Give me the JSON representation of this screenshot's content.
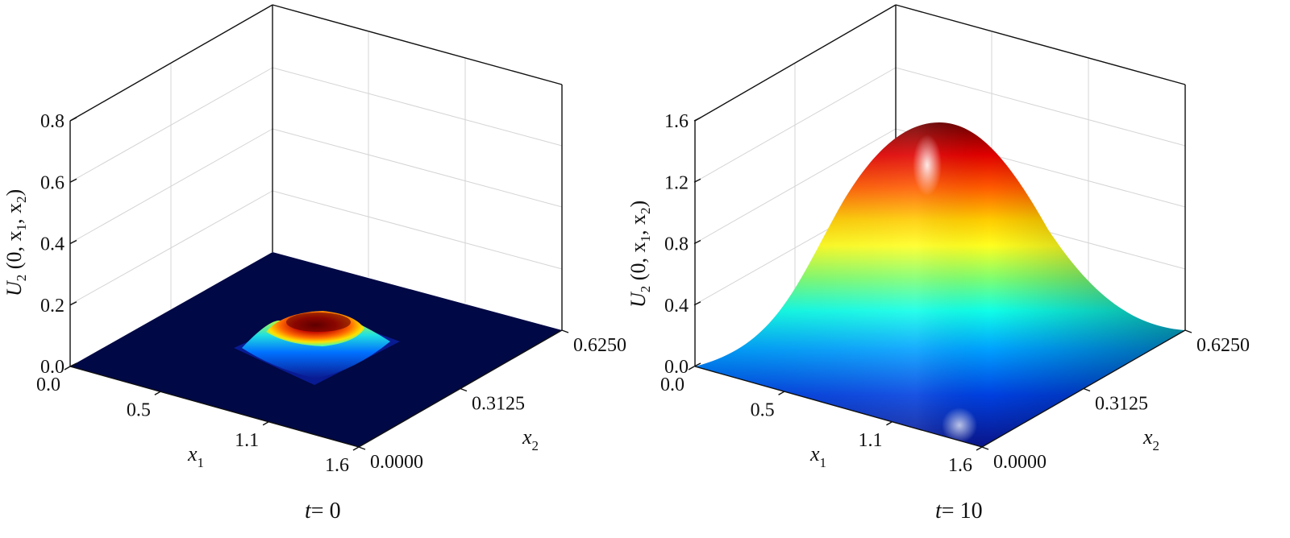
{
  "chart_data": [
    {
      "type": "surface",
      "title_var": "t",
      "title_value": "= 0",
      "zlabel": {
        "main": "U",
        "sub": "2",
        "rest": " (0, x",
        "sub1": "1",
        "mid": ", x",
        "sub2": "2",
        "end": ")"
      },
      "xlabel": {
        "main": "x",
        "sub": "1"
      },
      "ylabel": {
        "main": "x",
        "sub": "2"
      },
      "x_ticks": [
        "0.0",
        "0.5",
        "1.1",
        "1.6"
      ],
      "y_ticks": [
        "0.0000",
        "0.3125",
        "0.6250"
      ],
      "z_ticks": [
        "0.0",
        "0.2",
        "0.4",
        "0.6",
        "0.8"
      ],
      "xlim": [
        0,
        1.6
      ],
      "ylim": [
        0,
        0.625
      ],
      "zlim": [
        0,
        0.8
      ],
      "surface": {
        "shape": "localized-bump",
        "center_x": 0.8,
        "center_y": 0.3125,
        "width_x": 0.3,
        "width_y": 0.12,
        "peak": 0.2
      },
      "colormap": "jet",
      "grid": true
    },
    {
      "type": "surface",
      "title_var": "t",
      "title_value": "= 10",
      "zlabel": {
        "main": "U",
        "sub": "2",
        "rest": " (0, x",
        "sub1": "1",
        "mid": ", x",
        "sub2": "2",
        "end": ")"
      },
      "xlabel": {
        "main": "x",
        "sub": "1"
      },
      "ylabel": {
        "main": "x",
        "sub": "2"
      },
      "x_ticks": [
        "0.0",
        "0.5",
        "1.1",
        "1.6"
      ],
      "y_ticks": [
        "0.0000",
        "0.3125",
        "0.6250"
      ],
      "z_ticks": [
        "0.0",
        "0.4",
        "0.8",
        "1.2",
        "1.6"
      ],
      "xlim": [
        0,
        1.6
      ],
      "ylim": [
        0,
        0.625
      ],
      "zlim": [
        0,
        1.6
      ],
      "surface": {
        "shape": "sine-dome",
        "center_x": 0.8,
        "center_y": 0.3125,
        "peak": 1.6
      },
      "colormap": "jet",
      "grid": true
    }
  ]
}
